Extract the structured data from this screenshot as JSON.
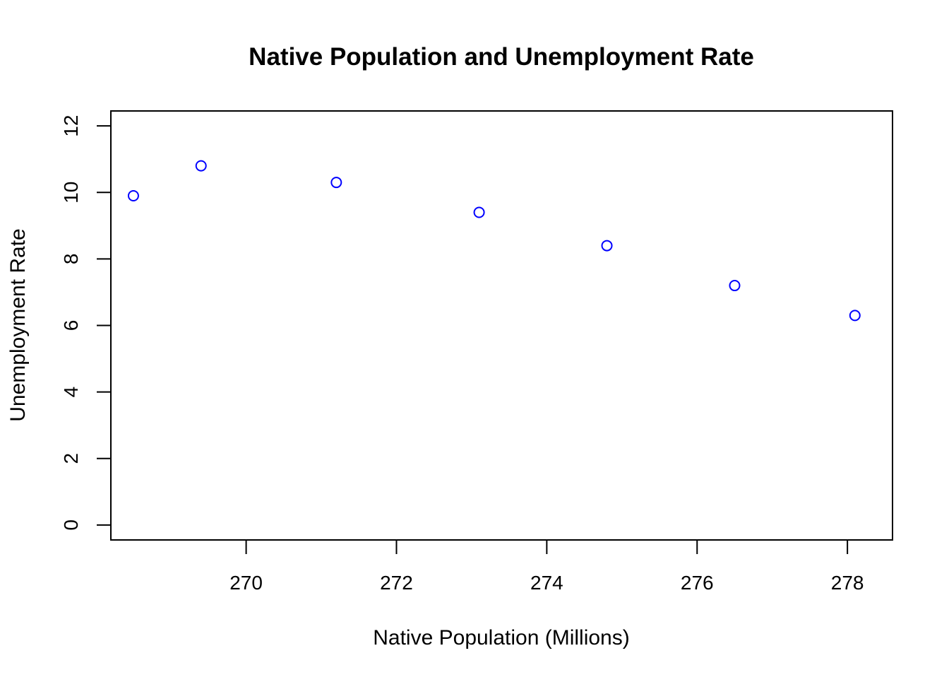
{
  "chart_data": {
    "type": "scatter",
    "title": "Native Population and Unemployment Rate",
    "xlabel": "Native Population (Millions)",
    "ylabel": "Unemployment Rate",
    "xlim": [
      268.2,
      278.6
    ],
    "ylim": [
      -0.45,
      12.45
    ],
    "xticks": [
      270,
      272,
      274,
      276,
      278
    ],
    "yticks": [
      0,
      2,
      4,
      6,
      8,
      10,
      12
    ],
    "grid": false,
    "point_color": "#0000ff",
    "points": [
      {
        "x": 268.5,
        "y": 9.9
      },
      {
        "x": 269.4,
        "y": 10.8
      },
      {
        "x": 271.2,
        "y": 10.3
      },
      {
        "x": 273.1,
        "y": 9.4
      },
      {
        "x": 274.8,
        "y": 8.4
      },
      {
        "x": 276.5,
        "y": 7.2
      },
      {
        "x": 278.1,
        "y": 6.3
      }
    ]
  }
}
